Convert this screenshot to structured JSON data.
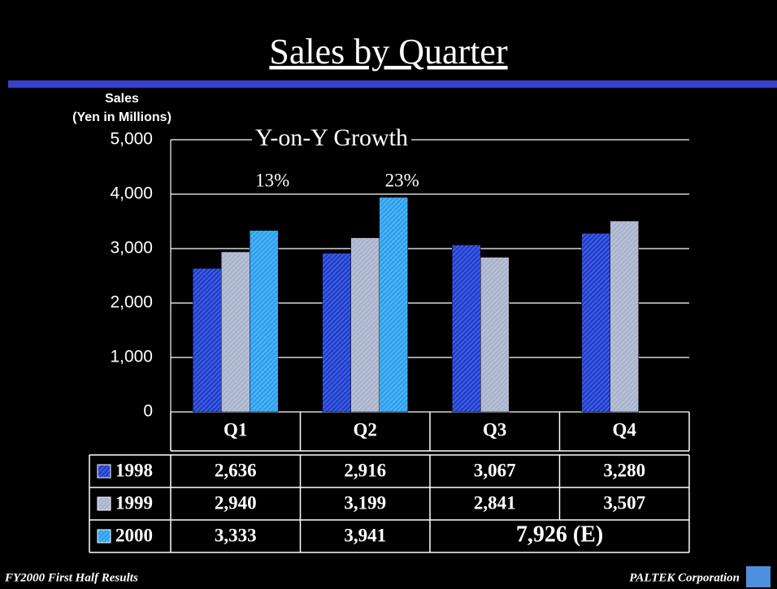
{
  "chart_data": {
    "type": "bar",
    "title": "Sales by Quarter",
    "y_label": [
      "Sales",
      "(Yen in Millions)"
    ],
    "growth_title": "Y-on-Y Growth",
    "growth": [
      "13%",
      "23%"
    ],
    "categories": [
      "Q1",
      "Q2",
      "Q3",
      "Q4"
    ],
    "series": [
      {
        "name": "1998",
        "color": "#1f3fd0",
        "values": [
          2636,
          2916,
          3067,
          3280
        ],
        "value_labels": [
          "2,636",
          "2,916",
          "3,067",
          "3,280"
        ]
      },
      {
        "name": "1999",
        "color": "#aab4cc",
        "values": [
          2940,
          3199,
          2841,
          3507
        ],
        "value_labels": [
          "2,940",
          "3,199",
          "2,841",
          "3,507"
        ]
      },
      {
        "name": "2000",
        "color": "#2ea2ee",
        "values": [
          3333,
          3941,
          null,
          null
        ],
        "value_labels": [
          "3,333",
          "3,941",
          null,
          null
        ]
      }
    ],
    "estimate": "7,926 (E)",
    "ylim": [
      0,
      5000
    ],
    "yticks": [
      0,
      {
        "value": 1000,
        "label": "1,000"
      },
      {
        "value": 2000,
        "label": "2,000"
      },
      {
        "value": 3000,
        "label": "3,000"
      },
      {
        "value": 4000,
        "label": "4,000"
      },
      {
        "value": 5000,
        "label": "5,000"
      }
    ],
    "grid": true,
    "footer_left": "FY2000 First Half Results",
    "footer_right": "PALTEK Corporation"
  }
}
